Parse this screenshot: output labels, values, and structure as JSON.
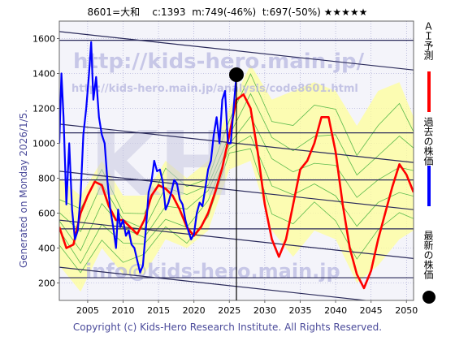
{
  "header": {
    "text": "8601=大和    c:1393  m:749(-46%)  t:697(-50%) ★★★★★"
  },
  "side_note": "Generated on Monday 2026/1/5.",
  "footer": "Copyright (c) Kids-Hero Research Institute. All Rights Reserved.",
  "watermarks": {
    "url_large": "http://kids-hero.main.jp/",
    "url_small": "http://kids-hero.main.jp/analysis/code8601.html",
    "email": "info@kids-hero.main.jp",
    "logo": "KH"
  },
  "legend": {
    "forecast": "ＡＩ予測",
    "past": "過去の株価",
    "latest": "最新の株価"
  },
  "colors": {
    "forecast": "#ff0000",
    "past": "#0000ff",
    "latest": "#000000",
    "channel": "#2a2a5a",
    "band_fill": "#ffff99",
    "band_line": "#33aa33",
    "grid": "#9999cc",
    "plot_bg": "#f4f4fa"
  },
  "chart_data": {
    "type": "line",
    "xlim": [
      2001,
      2051
    ],
    "ylim": [
      100,
      1700
    ],
    "x_ticks": [
      2005,
      2010,
      2015,
      2020,
      2025,
      2030,
      2035,
      2040,
      2045,
      2050
    ],
    "y_ticks": [
      200,
      400,
      600,
      800,
      1000,
      1200,
      1400,
      1600
    ],
    "grid": true,
    "latest_point": {
      "x": 2026.0,
      "y": 1393
    },
    "series": [
      {
        "name": "過去の株価",
        "x": [
          2001.0,
          2001.3,
          2001.6,
          2002.0,
          2002.4,
          2002.8,
          2003.2,
          2003.6,
          2004.0,
          2004.4,
          2004.8,
          2005.2,
          2005.5,
          2005.8,
          2006.2,
          2006.6,
          2007.0,
          2007.4,
          2007.8,
          2008.2,
          2008.6,
          2009.0,
          2009.3,
          2009.6,
          2010.0,
          2010.4,
          2010.8,
          2011.2,
          2011.6,
          2012.0,
          2012.4,
          2012.8,
          2013.2,
          2013.6,
          2014.0,
          2014.4,
          2014.8,
          2015.2,
          2015.6,
          2016.0,
          2016.4,
          2016.8,
          2017.2,
          2017.6,
          2018.0,
          2018.4,
          2018.8,
          2019.2,
          2019.6,
          2020.0,
          2020.4,
          2020.8,
          2021.2,
          2021.6,
          2022.0,
          2022.4,
          2022.8,
          2023.2,
          2023.6,
          2024.0,
          2024.4,
          2024.8,
          2025.2,
          2025.6,
          2026.0
        ],
        "y": [
          1000,
          1400,
          1150,
          650,
          1000,
          620,
          450,
          500,
          700,
          1050,
          1200,
          1400,
          1580,
          1250,
          1380,
          1150,
          1050,
          1000,
          780,
          620,
          520,
          400,
          620,
          520,
          560,
          470,
          500,
          420,
          400,
          330,
          260,
          300,
          500,
          720,
          780,
          900,
          840,
          850,
          780,
          620,
          660,
          720,
          790,
          770,
          680,
          650,
          560,
          500,
          450,
          480,
          600,
          660,
          640,
          740,
          850,
          900,
          1050,
          1150,
          1000,
          1250,
          1300,
          1000,
          1000,
          1200,
          1393
        ]
      },
      {
        "name": "ＡＩ予測",
        "x": [
          2001.0,
          2002.0,
          2003.0,
          2004.0,
          2005.0,
          2006.0,
          2007.0,
          2008.0,
          2009.0,
          2010.0,
          2011.0,
          2012.0,
          2013.0,
          2014.0,
          2015.0,
          2016.0,
          2017.0,
          2018.0,
          2019.0,
          2020.0,
          2021.0,
          2022.0,
          2023.0,
          2024.0,
          2025.0,
          2026.0,
          2027.0,
          2028.0,
          2029.0,
          2030.0,
          2031.0,
          2032.0,
          2033.0,
          2034.0,
          2035.0,
          2036.0,
          2037.0,
          2038.0,
          2039.0,
          2040.0,
          2041.0,
          2042.0,
          2043.0,
          2044.0,
          2045.0,
          2046.0,
          2047.0,
          2048.0,
          2049.0,
          2050.0,
          2051.0
        ],
        "y": [
          520,
          400,
          420,
          600,
          700,
          780,
          760,
          640,
          560,
          560,
          520,
          480,
          560,
          700,
          760,
          740,
          700,
          620,
          520,
          470,
          520,
          600,
          720,
          860,
          1050,
          1250,
          1280,
          1200,
          950,
          650,
          450,
          350,
          450,
          650,
          850,
          900,
          1000,
          1150,
          1150,
          950,
          650,
          400,
          250,
          170,
          270,
          450,
          600,
          750,
          880,
          820,
          720
        ]
      }
    ],
    "channel_lines": [
      {
        "x": [
          2001,
          2051
        ],
        "y": [
          1640,
          1420
        ]
      },
      {
        "x": [
          2001,
          2051
        ],
        "y": [
          1590,
          1590
        ]
      },
      {
        "x": [
          2001,
          2051
        ],
        "y": [
          1110,
          890
        ]
      },
      {
        "x": [
          2001,
          2051
        ],
        "y": [
          1060,
          1060
        ]
      },
      {
        "x": [
          2001,
          2051
        ],
        "y": [
          840,
          620
        ]
      },
      {
        "x": [
          2001,
          2051
        ],
        "y": [
          790,
          790
        ]
      },
      {
        "x": [
          2001,
          2051
        ],
        "y": [
          560,
          340
        ]
      },
      {
        "x": [
          2001,
          2051
        ],
        "y": [
          510,
          510
        ]
      },
      {
        "x": [
          2001,
          2051
        ],
        "y": [
          290,
          70
        ]
      },
      {
        "x": [
          2001,
          2051
        ],
        "y": [
          230,
          230
        ]
      }
    ],
    "band": {
      "x": [
        2001,
        2004,
        2007,
        2010,
        2013,
        2016,
        2019,
        2022,
        2025,
        2028,
        2031,
        2034,
        2037,
        2040,
        2043,
        2046,
        2049,
        2051
      ],
      "upper": [
        800,
        700,
        900,
        700,
        700,
        900,
        800,
        900,
        1200,
        1450,
        1250,
        1300,
        1350,
        1300,
        1100,
        1300,
        1350,
        1150
      ],
      "lower": [
        300,
        150,
        400,
        250,
        250,
        450,
        400,
        500,
        850,
        900,
        500,
        350,
        500,
        450,
        200,
        300,
        450,
        500
      ]
    }
  }
}
